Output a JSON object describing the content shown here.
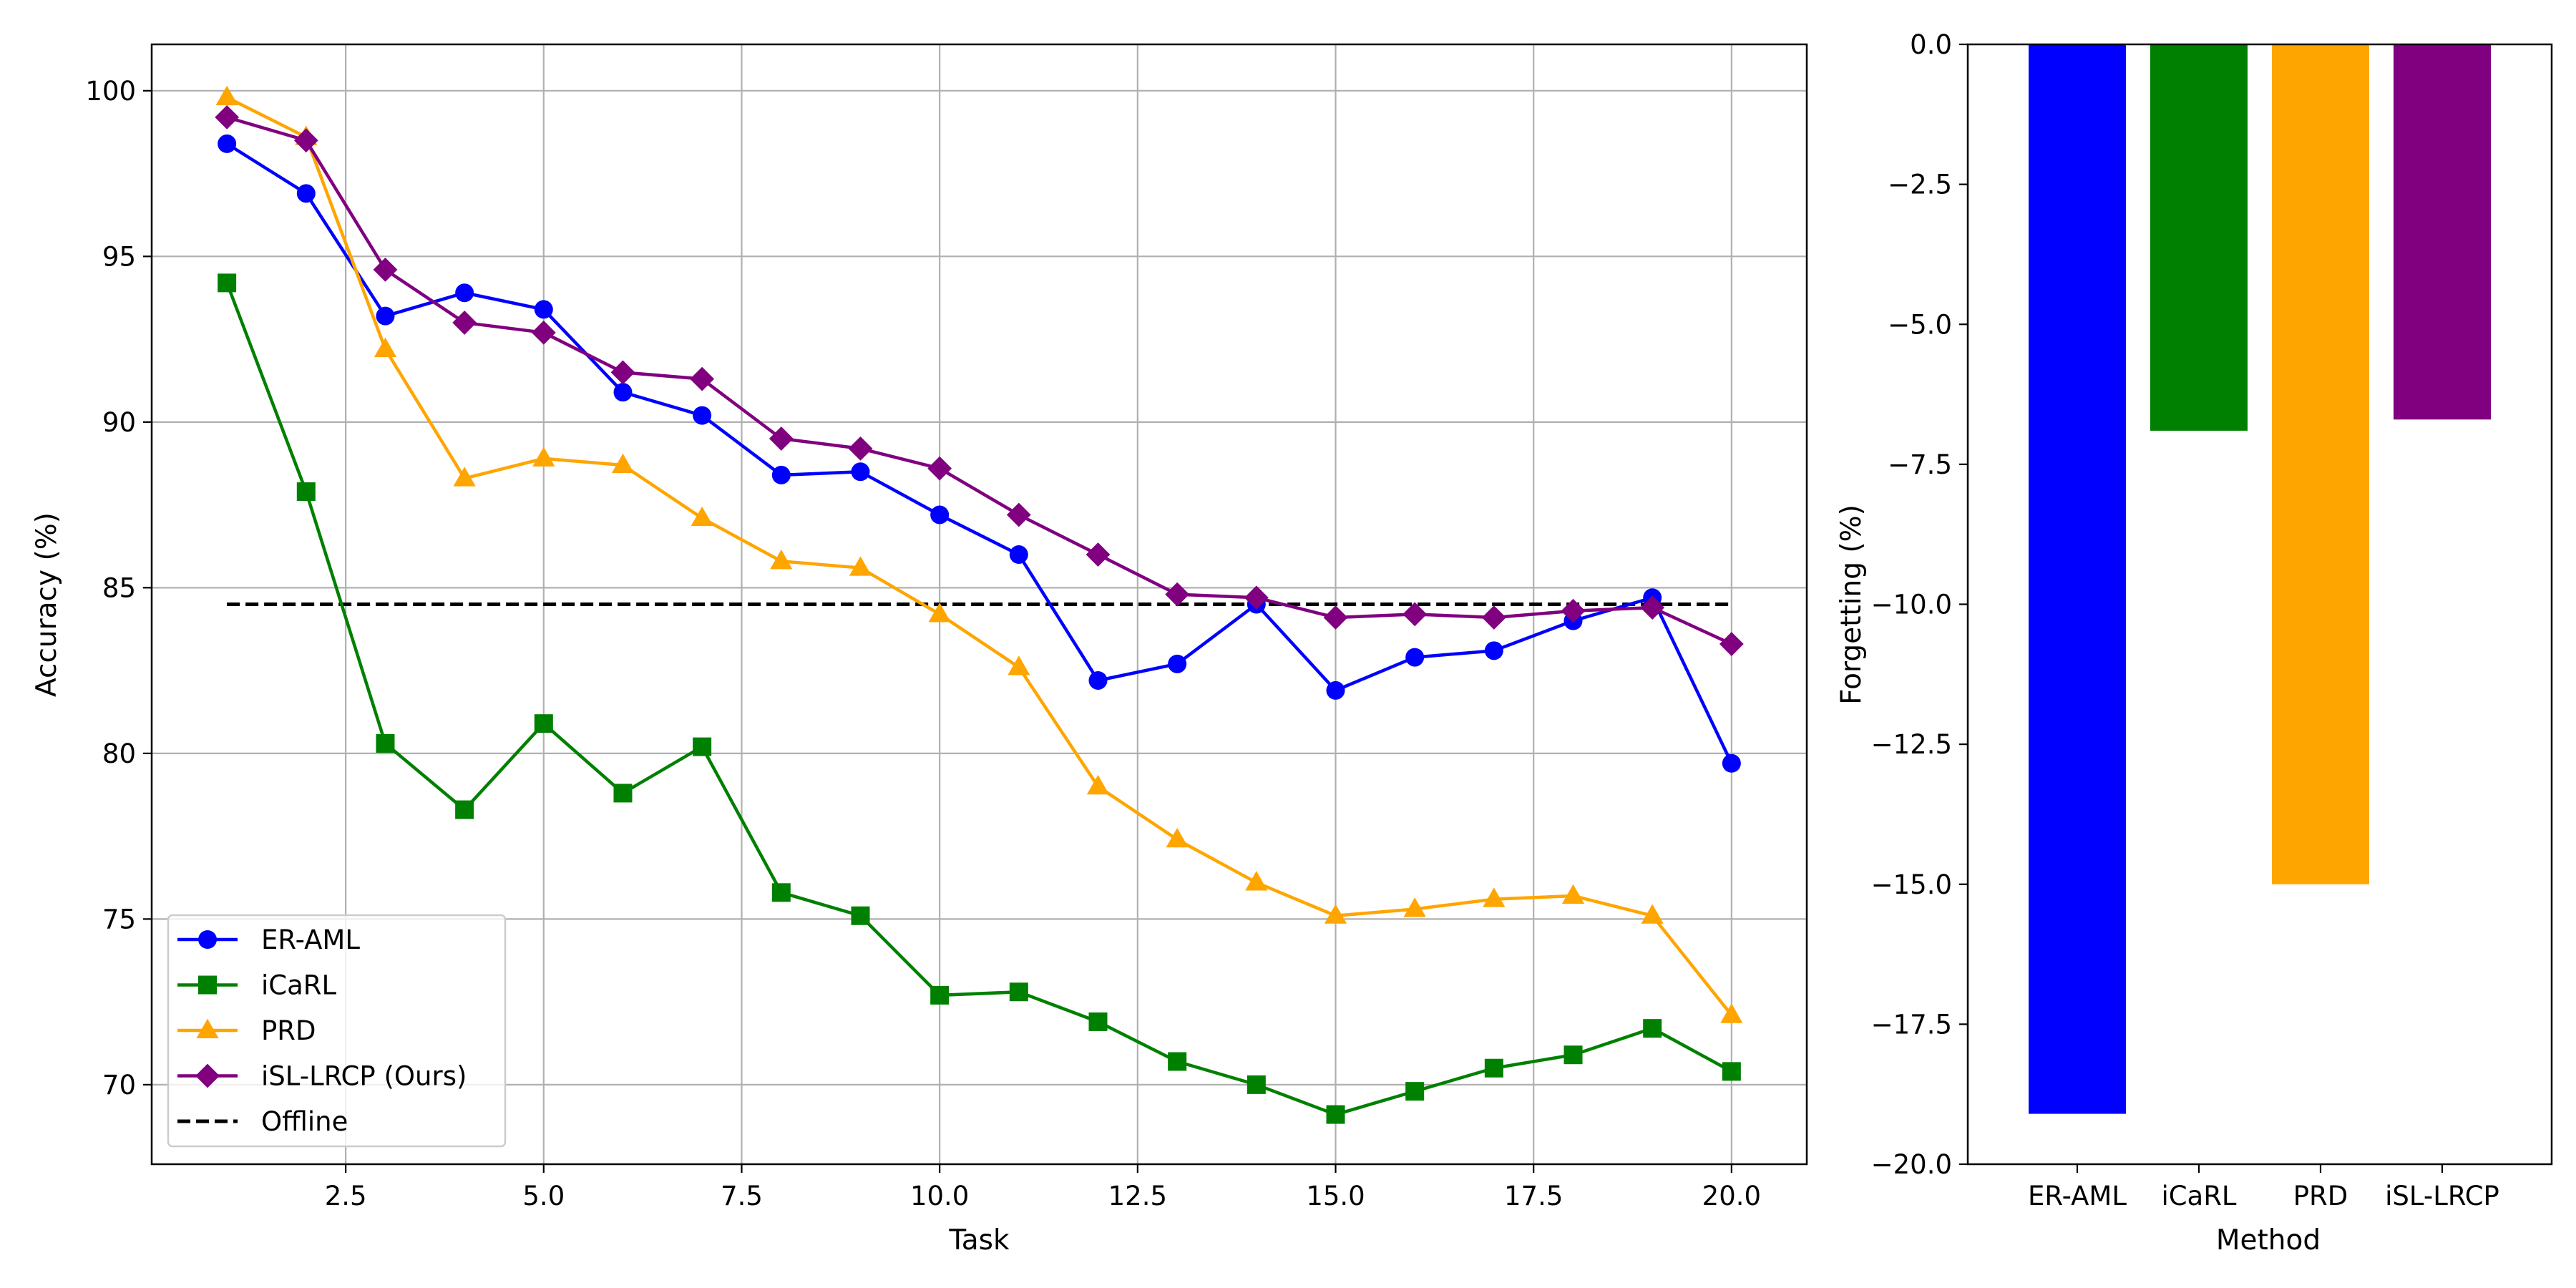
{
  "chart_data": [
    {
      "type": "line",
      "xlabel": "Task",
      "ylabel": "Accuracy (%)",
      "xlim": [
        0.05,
        20.95
      ],
      "ylim": [
        67.6,
        101.4
      ],
      "grid": true,
      "legend_position": "lower-left",
      "xticks": [
        2.5,
        5.0,
        7.5,
        10.0,
        12.5,
        15.0,
        17.5,
        20.0
      ],
      "xtick_labels": [
        "2.5",
        "5.0",
        "7.5",
        "10.0",
        "12.5",
        "15.0",
        "17.5",
        "20.0"
      ],
      "yticks": [
        70,
        75,
        80,
        85,
        90,
        95,
        100
      ],
      "ytick_labels": [
        "70",
        "75",
        "80",
        "85",
        "90",
        "95",
        "100"
      ],
      "x": [
        1,
        2,
        3,
        4,
        5,
        6,
        7,
        8,
        9,
        10,
        11,
        12,
        13,
        14,
        15,
        16,
        17,
        18,
        19,
        20
      ],
      "series": [
        {
          "name": "ER-AML",
          "color": "#0000ff",
          "marker": "circle",
          "values": [
            98.4,
            96.9,
            93.2,
            93.9,
            93.4,
            90.9,
            90.2,
            88.4,
            88.5,
            87.2,
            86.0,
            82.2,
            82.7,
            84.5,
            81.9,
            82.9,
            83.1,
            84.0,
            84.7,
            79.7
          ]
        },
        {
          "name": "iCaRL",
          "color": "#008000",
          "marker": "square",
          "values": [
            94.2,
            87.9,
            80.3,
            78.3,
            80.9,
            78.8,
            80.2,
            75.8,
            75.1,
            72.7,
            72.8,
            71.9,
            70.7,
            70.0,
            69.1,
            69.8,
            70.5,
            70.9,
            71.7,
            70.4
          ]
        },
        {
          "name": "PRD",
          "color": "#ffa500",
          "marker": "triangle",
          "values": [
            99.8,
            98.6,
            92.2,
            88.3,
            88.9,
            88.7,
            87.1,
            85.8,
            85.6,
            84.2,
            82.6,
            79.0,
            77.4,
            76.1,
            75.1,
            75.3,
            75.6,
            75.7,
            75.1,
            72.1
          ]
        },
        {
          "name": "iSL-LRCP (Ours)",
          "color": "#800080",
          "marker": "diamond",
          "values": [
            99.2,
            98.5,
            94.6,
            93.0,
            92.7,
            91.5,
            91.3,
            89.5,
            89.2,
            88.6,
            87.2,
            86.0,
            84.8,
            84.7,
            84.1,
            84.2,
            84.1,
            84.3,
            84.4,
            83.3
          ]
        }
      ],
      "reference_lines": [
        {
          "name": "Offline",
          "color": "#000000",
          "style": "dashed",
          "y": 84.5,
          "x_from": 1,
          "x_to": 20
        }
      ]
    },
    {
      "type": "bar",
      "xlabel": "Method",
      "ylabel": "Forgetting (%)",
      "ylim": [
        -20.0,
        0.0
      ],
      "grid": false,
      "yticks": [
        0.0,
        -2.5,
        -5.0,
        -7.5,
        -10.0,
        -12.5,
        -15.0,
        -17.5,
        -20.0
      ],
      "ytick_labels": [
        "0.0",
        "−2.5",
        "−5.0",
        "−7.5",
        "−10.0",
        "−12.5",
        "−15.0",
        "−17.5",
        "−20.0"
      ],
      "categories": [
        "ER-AML",
        "iCaRL",
        "PRD",
        "iSL-LRCP"
      ],
      "values": [
        -19.1,
        -6.9,
        -15.0,
        -6.7
      ],
      "colors": [
        "#0000ff",
        "#008000",
        "#ffa500",
        "#800080"
      ]
    }
  ]
}
